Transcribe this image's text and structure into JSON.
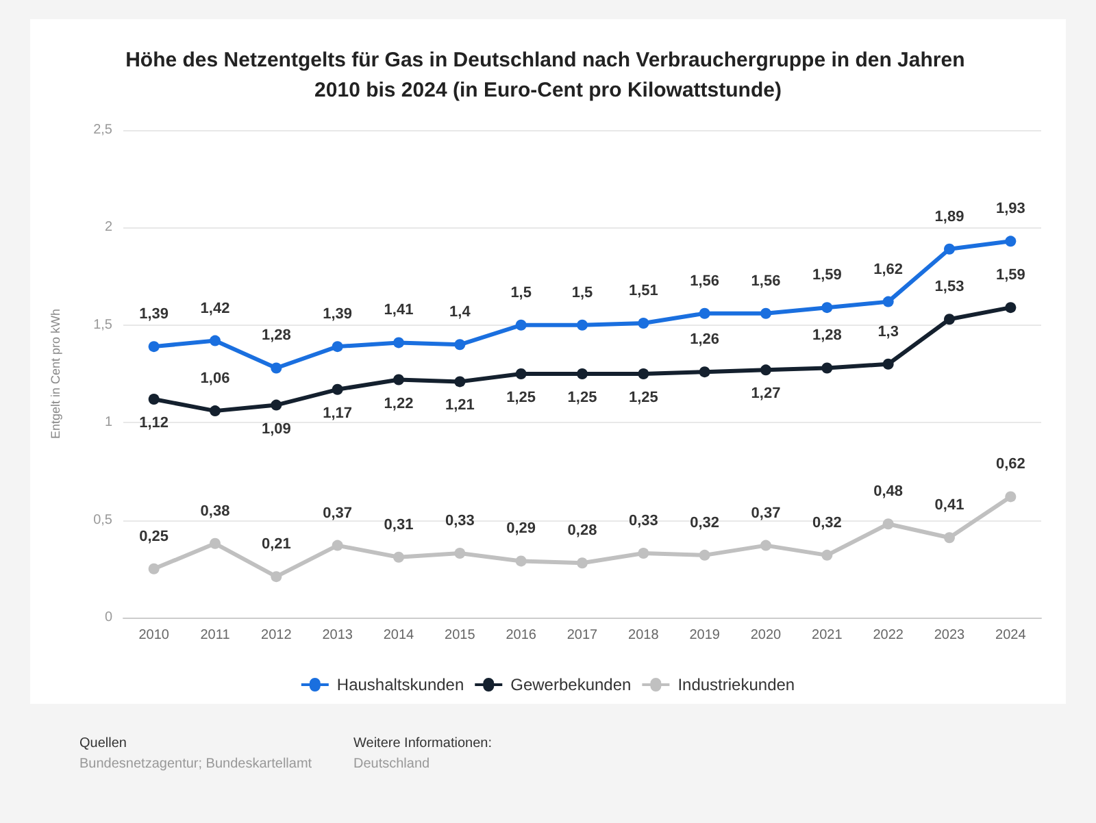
{
  "chart_data": {
    "type": "line",
    "title": "Höhe des Netzentgelts für Gas in Deutschland nach Verbrauchergruppe in den Jahren 2010 bis 2024 (in Euro-Cent pro Kilowattstunde)",
    "ylabel": "Entgelt in Cent pro kWh",
    "categories": [
      "2010",
      "2011",
      "2012",
      "2013",
      "2014",
      "2015",
      "2016",
      "2017",
      "2018",
      "2019",
      "2020",
      "2021",
      "2022",
      "2023",
      "2024"
    ],
    "series": [
      {
        "name": "Haushaltskunden",
        "color": "#1a6fdf",
        "values": [
          1.39,
          1.42,
          1.28,
          1.39,
          1.41,
          1.4,
          1.5,
          1.5,
          1.51,
          1.56,
          1.56,
          1.59,
          1.62,
          1.89,
          1.93
        ],
        "value_labels": [
          "1,39",
          "1,42",
          "1,28",
          "1,39",
          "1,41",
          "1,4",
          "1,5",
          "1,5",
          "1,51",
          "1,56",
          "1,56",
          "1,59",
          "1,62",
          "1,89",
          "1,93"
        ]
      },
      {
        "name": "Gewerbekunden",
        "color": "#14202e",
        "values": [
          1.12,
          1.06,
          1.09,
          1.17,
          1.22,
          1.21,
          1.25,
          1.25,
          1.25,
          1.26,
          1.27,
          1.28,
          1.3,
          1.53,
          1.59
        ],
        "value_labels": [
          "1,12",
          "1,06",
          "1,09",
          "1,17",
          "1,22",
          "1,21",
          "1,25",
          "1,25",
          "1,25",
          "1,26",
          "1,27",
          "1,28",
          "1,3",
          "1,53",
          "1,59"
        ]
      },
      {
        "name": "Industriekunden",
        "color": "#c0c0c0",
        "values": [
          0.25,
          0.38,
          0.21,
          0.37,
          0.31,
          0.33,
          0.29,
          0.28,
          0.33,
          0.32,
          0.37,
          0.32,
          0.48,
          0.41,
          0.62
        ],
        "value_labels": [
          "0,25",
          "0,38",
          "0,21",
          "0,37",
          "0,31",
          "0,33",
          "0,29",
          "0,28",
          "0,33",
          "0,32",
          "0,37",
          "0,32",
          "0,48",
          "0,41",
          "0,62"
        ]
      }
    ],
    "ylim": [
      0,
      2.5
    ],
    "yticks": [
      0,
      {
        "value": 0.5,
        "label": "0,5"
      },
      1,
      {
        "value": 1.5,
        "label": "1,5"
      },
      2,
      {
        "value": 2.5,
        "label": "2,5"
      }
    ],
    "grid": "y",
    "legend": "bottom",
    "marker": "circle",
    "line_style": "solid",
    "annotations": [
      "Quellen",
      "Bundesnetzagentur; Bundeskartellamt",
      "Weitere Informationen:",
      "Deutschland"
    ]
  }
}
